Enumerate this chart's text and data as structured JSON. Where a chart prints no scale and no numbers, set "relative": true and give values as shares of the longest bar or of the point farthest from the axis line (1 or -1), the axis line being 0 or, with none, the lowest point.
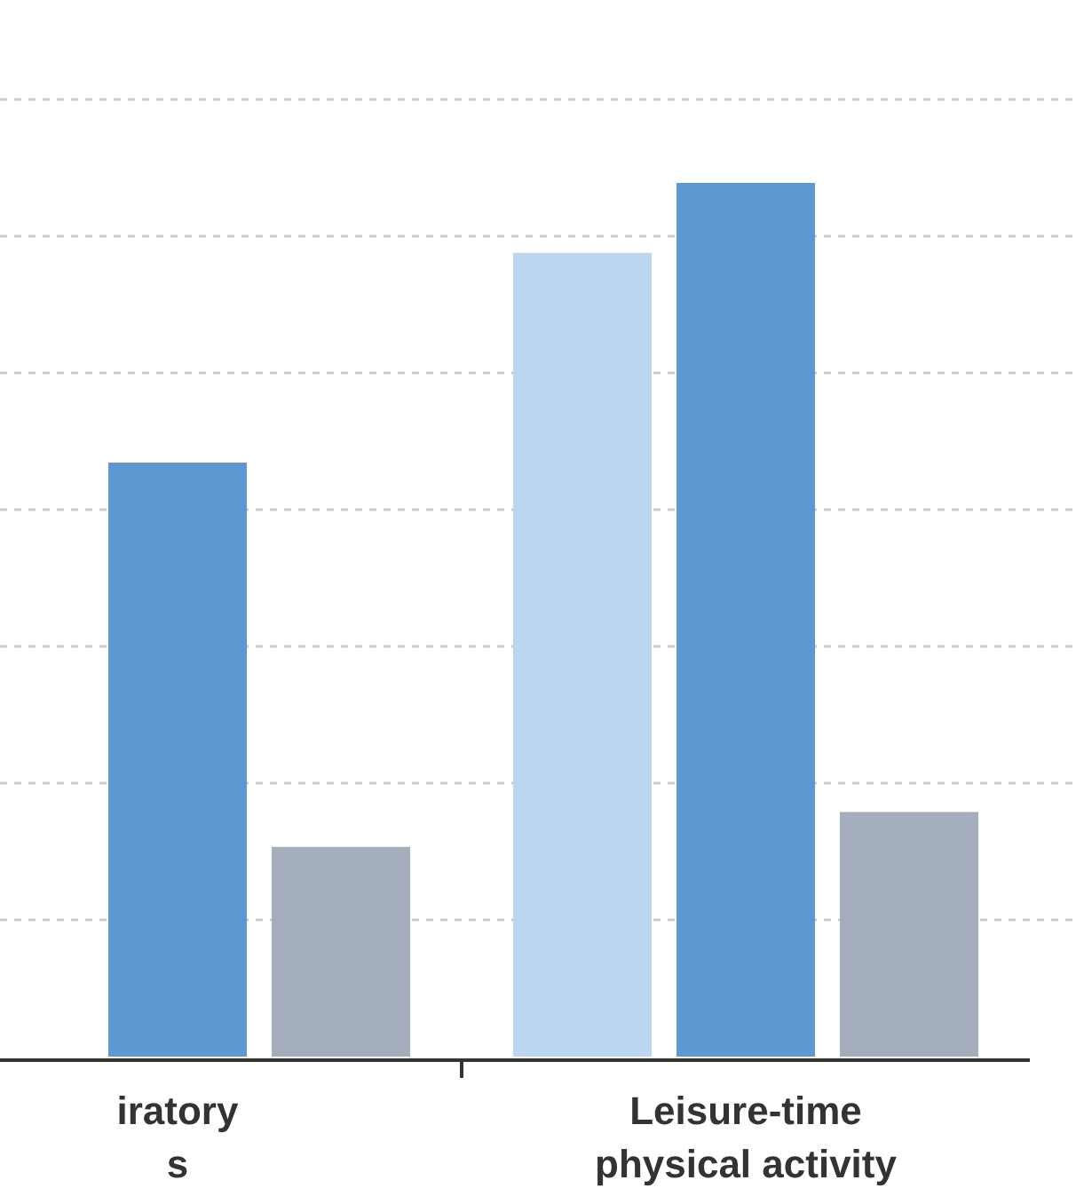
{
  "chart_data": {
    "type": "bar",
    "relative": true,
    "grid": "y",
    "categories": [
      "iratory\ns",
      "Leisure-time\nphysical activity"
    ],
    "series": [
      {
        "color": "#bcd5f0",
        "values": [
          null,
          0.92
        ]
      },
      {
        "color": "#5e97d2",
        "values": [
          0.68,
          1
        ]
      },
      {
        "color": "#a3adbb",
        "values": [
          0.24,
          0.28
        ]
      }
    ]
  }
}
